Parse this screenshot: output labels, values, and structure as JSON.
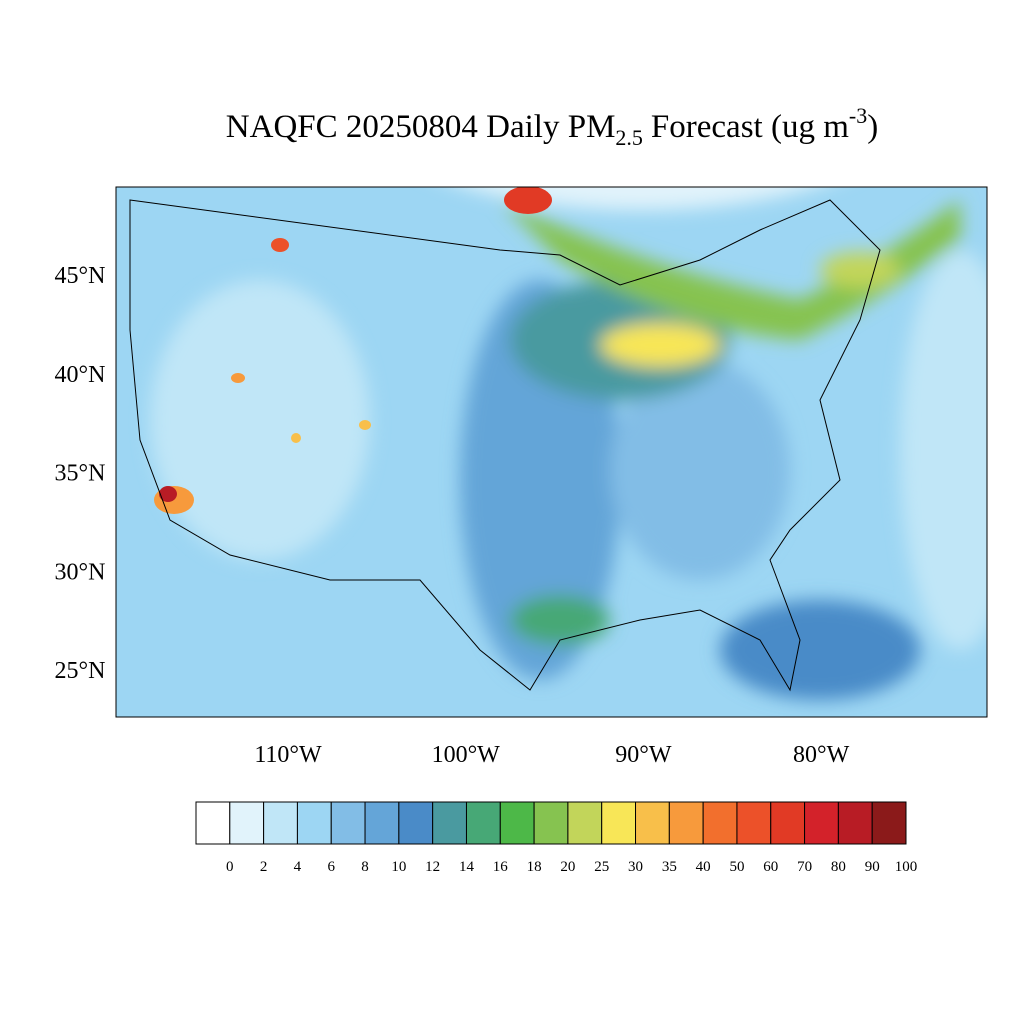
{
  "title": {
    "main": "NAQFC 20250804 Daily PM",
    "subscript": "2.5",
    "after": "Forecast (ug m",
    "superscript": "-3",
    "end": ")"
  },
  "map": {
    "lat_ticks": [
      {
        "value": 45,
        "label": "45°N"
      },
      {
        "value": 40,
        "label": "40°N"
      },
      {
        "value": 35,
        "label": "35°N"
      },
      {
        "value": 30,
        "label": "30°N"
      },
      {
        "value": 25,
        "label": "25°N"
      }
    ],
    "lon_ticks": [
      {
        "value": -110,
        "label": "110°W"
      },
      {
        "value": -100,
        "label": "100°W"
      },
      {
        "value": -90,
        "label": "90°W"
      },
      {
        "value": -80,
        "label": "80°W"
      }
    ]
  },
  "colorbar": {
    "levels": [
      0,
      2,
      4,
      6,
      8,
      10,
      12,
      14,
      16,
      18,
      20,
      25,
      30,
      35,
      40,
      50,
      60,
      70,
      80,
      90,
      100
    ],
    "colors": [
      "#ffffff",
      "#e1f3fb",
      "#c0e6f7",
      "#9dd6f3",
      "#82bde6",
      "#64a5d8",
      "#4a8bc8",
      "#4a9aa0",
      "#47a876",
      "#4db848",
      "#86c350",
      "#c2d55a",
      "#f8e657",
      "#f8bf4a",
      "#f79a3c",
      "#f26f2d",
      "#ec5129",
      "#e13a25",
      "#d3222a",
      "#b81c25",
      "#8b1a1a"
    ]
  }
}
